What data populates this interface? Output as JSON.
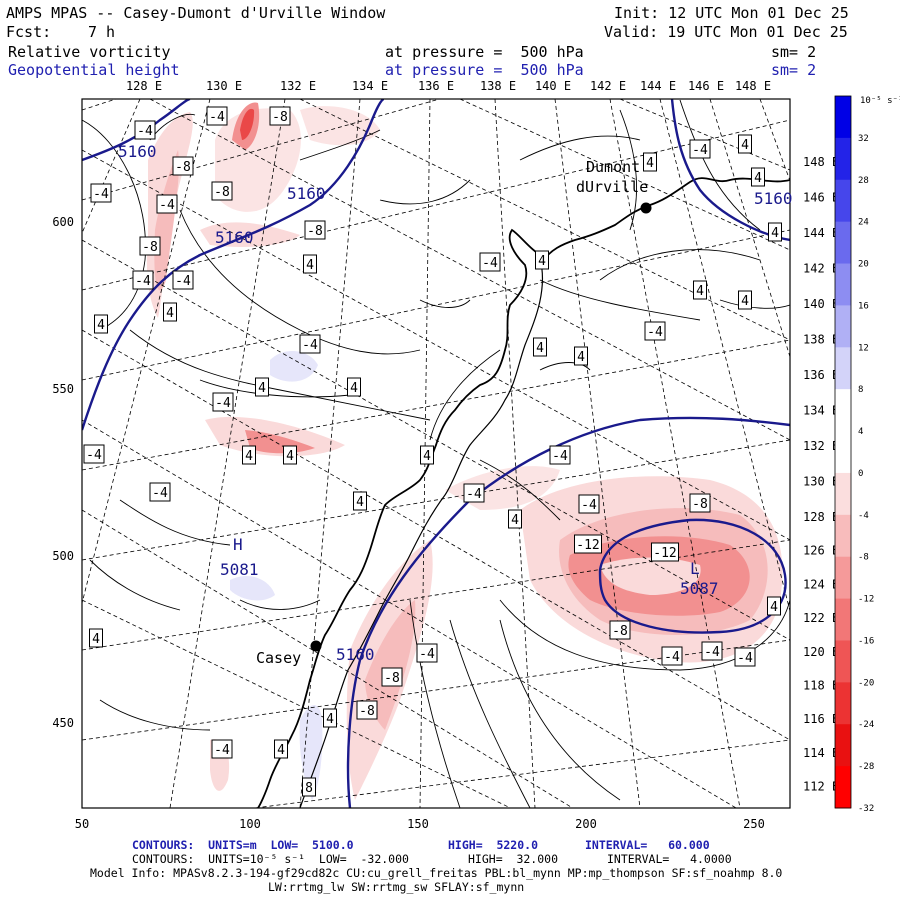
{
  "header": {
    "title": "AMPS MPAS -- Casey-Dumont d'Urville Window",
    "fcst_label": "Fcst:",
    "fcst_value": "7 h",
    "init": "Init: 12 UTC Mon 01 Dec 25",
    "valid": "Valid: 19 UTC Mon 01 Dec 25",
    "field1_name": "Relative vorticity",
    "field1_level": "at pressure =  500 hPa",
    "field1_sm": "sm= 2",
    "field2_name": "Geopotential height",
    "field2_level": "at pressure =  500 hPa",
    "field2_sm": "sm= 2"
  },
  "map": {
    "top_longitude_labels": [
      "128 E",
      "130 E",
      "132 E",
      "134 E",
      "136 E",
      "138 E",
      "140 E",
      "142 E",
      "144 E",
      "146 E",
      "148 E"
    ],
    "right_longitude_labels": [
      "148 E",
      "146 E",
      "144 E",
      "142 E",
      "140 E",
      "138 E",
      "136 E",
      "134 E",
      "132 E",
      "130 E",
      "128 E",
      "126 E",
      "124 E",
      "122 E",
      "120 E",
      "118 E",
      "116 E",
      "114 E",
      "112 E"
    ],
    "x_ticks": [
      "50",
      "100",
      "150",
      "200",
      "250"
    ],
    "y_ticks": [
      "600",
      "550",
      "500",
      "450"
    ],
    "stations": [
      {
        "name": "Dumont",
        "name2": "dUrville"
      },
      {
        "name": "Casey"
      }
    ],
    "height_labels": [
      "5160",
      "5160",
      "5160",
      "5160",
      "5160",
      "5087",
      "5081"
    ],
    "low_marker": "L",
    "high_marker": "H",
    "vorticity_labels": [
      "-4",
      "-4",
      "-8",
      "-8",
      "-4",
      "-4",
      "-8",
      "-8",
      "-8",
      "-4",
      "-4",
      "4",
      "4",
      "-4",
      "4",
      "4",
      "-4",
      "4",
      "-4",
      "4",
      "4",
      "4",
      "-4",
      "4",
      "4",
      "4",
      "-4",
      "4",
      "-4",
      "-4",
      "4",
      "4",
      "4",
      "4",
      "-4",
      "4",
      "4",
      "-4",
      "-12",
      "-12",
      "-8",
      "-8",
      "-4",
      "-4",
      "-4",
      "-4",
      "4",
      "-4",
      "-8",
      "-8",
      "4",
      "4",
      "-4",
      "8",
      "4",
      "4"
    ]
  },
  "colorbar": {
    "unit_label": "10⁻⁵ s⁻¹",
    "labels": [
      "32",
      "28",
      "24",
      "20",
      "16",
      "12",
      "8",
      "4",
      "0",
      "-4",
      "-8",
      "-12",
      "-16",
      "-20",
      "-24",
      "-28",
      "-32"
    ],
    "colors": [
      "#0000e6",
      "#2323e8",
      "#4646eb",
      "#6a6aee",
      "#8d8df2",
      "#b0b0f5",
      "#d3d3f9",
      "#ffffff",
      "#ffffff",
      "#fbdede",
      "#f8bcbc",
      "#f59a9a",
      "#f27777",
      "#ef5555",
      "#ec3333",
      "#e91111",
      "#ff0000"
    ]
  },
  "footer": {
    "line1_a": "CONTOURS:  UNITS=m  LOW=  5100.0",
    "line1_b": "HIGH=  5220.0",
    "line1_c": "INTERVAL=   60.000",
    "line2_a": "CONTOURS:  UNITS=10⁻⁵ s⁻¹  LOW=  -32.000",
    "line2_b": "HIGH=  32.000",
    "line2_c": "INTERVAL=   4.0000",
    "line3": "Model Info: MPASv8.2.3-194-gf29cd82c CU:cu_grell_freitas PBL:bl_mynn MP:mp_thompson SF:sf_noahmp 8.0",
    "line4": "LW:rrtmg_lw SW:rrtmg_sw SFLAY:sf_mynn"
  }
}
